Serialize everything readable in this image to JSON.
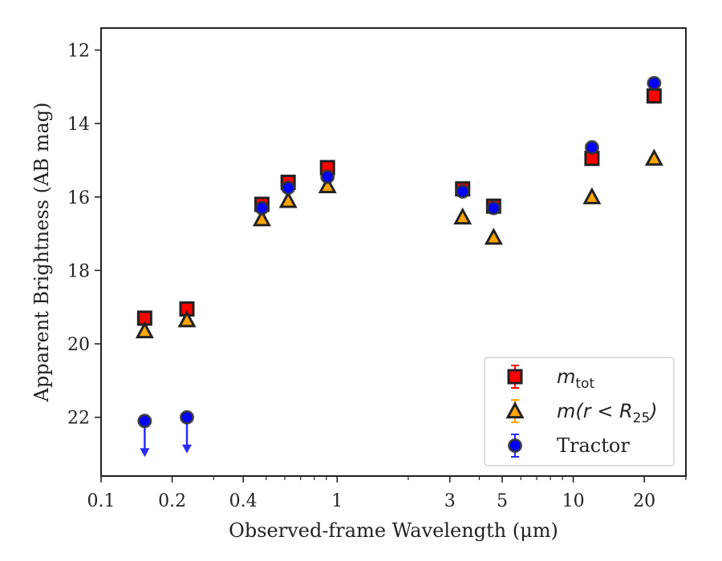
{
  "chart_data": {
    "type": "scatter",
    "title": "",
    "xlabel": "Observed-frame Wavelength (μm)",
    "ylabel": "Apparent Brightness (AB mag)",
    "xscale": "log",
    "xlim": [
      0.1,
      30
    ],
    "ylim": [
      23.6,
      11.4
    ],
    "y_inverted": true,
    "x_ticks": [
      0.1,
      0.2,
      0.4,
      1,
      3,
      5,
      10,
      20
    ],
    "x_tick_labels": [
      "0.1",
      "0.2",
      "0.4",
      "1",
      "3",
      "5",
      "10",
      "20"
    ],
    "y_ticks": [
      12,
      14,
      16,
      18,
      20,
      22
    ],
    "y_tick_labels": [
      "12",
      "14",
      "16",
      "18",
      "20",
      "22"
    ],
    "grid": false,
    "legend_position": "bottom-right",
    "series": [
      {
        "name": "m_tot",
        "label_main": "m",
        "label_sub": "tot",
        "marker": "square",
        "color": "#ff0000",
        "edge_color": "#222222",
        "x": [
          0.153,
          0.231,
          0.48,
          0.62,
          0.91,
          3.4,
          4.6,
          12.0,
          22.0
        ],
        "y": [
          19.3,
          19.05,
          16.2,
          15.6,
          15.2,
          15.78,
          16.25,
          14.95,
          13.25
        ]
      },
      {
        "name": "m(r < R25)",
        "label_main": "m(r < R",
        "label_sub": "25",
        "label_tail": ")",
        "marker": "triangle",
        "color": "#ffa500",
        "edge_color": "#222222",
        "x": [
          0.153,
          0.231,
          0.48,
          0.62,
          0.91,
          3.4,
          4.6,
          12.0,
          22.0
        ],
        "y": [
          19.65,
          19.35,
          16.6,
          16.1,
          15.7,
          16.55,
          17.1,
          16.0,
          14.95
        ]
      },
      {
        "name": "Tractor",
        "label_main": "Tractor",
        "marker": "circle",
        "color": "#0000ff",
        "edge_color": "#333333",
        "x": [
          0.153,
          0.231,
          0.48,
          0.62,
          0.91,
          3.4,
          4.6,
          12.0,
          22.0
        ],
        "y": [
          22.1,
          22.0,
          16.3,
          15.75,
          15.45,
          15.85,
          16.3,
          14.65,
          12.9
        ],
        "upper_limit": [
          true,
          true,
          false,
          false,
          false,
          false,
          false,
          false,
          false
        ],
        "arrow_color": "#2a2aff"
      }
    ]
  }
}
